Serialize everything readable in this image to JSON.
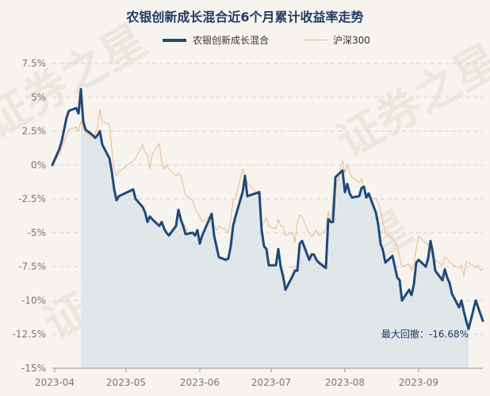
{
  "chart_data": {
    "type": "line",
    "title": "农银创新成长混合近6个月累计收益率走势",
    "xlabel": "",
    "ylabel": "",
    "ylim": [
      -15,
      7.5
    ],
    "yticks": [
      "7.5%",
      "5%",
      "2.5%",
      "0%",
      "-2.5%",
      "-5%",
      "-7.5%",
      "-10%",
      "-12.5%",
      "-15%"
    ],
    "xticks": [
      "2023-04",
      "2023-05",
      "2023-06",
      "2023-07",
      "2023-08",
      "2023-09"
    ],
    "grid": true,
    "legend_position": "top",
    "annotation": "最大回撤：-16.68%",
    "watermark": "证券之星",
    "series": [
      {
        "name": "农银创新成长混合",
        "color": "#1f4a7a",
        "x": [
          "2023-03-31",
          "2023-04-03",
          "2023-04-04",
          "2023-04-06",
          "2023-04-07",
          "2023-04-10",
          "2023-04-11",
          "2023-04-12",
          "2023-04-13",
          "2023-04-14",
          "2023-04-17",
          "2023-04-18",
          "2023-04-19",
          "2023-04-20",
          "2023-04-21",
          "2023-04-24",
          "2023-04-25",
          "2023-04-26",
          "2023-04-27",
          "2023-04-28",
          "2023-05-04",
          "2023-05-05",
          "2023-05-08",
          "2023-05-09",
          "2023-05-10",
          "2023-05-11",
          "2023-05-12",
          "2023-05-15",
          "2023-05-16",
          "2023-05-17",
          "2023-05-18",
          "2023-05-19",
          "2023-05-22",
          "2023-05-23",
          "2023-05-24",
          "2023-05-25",
          "2023-05-26",
          "2023-05-29",
          "2023-05-30",
          "2023-05-31",
          "2023-06-01",
          "2023-06-02",
          "2023-06-05",
          "2023-06-06",
          "2023-06-07",
          "2023-06-08",
          "2023-06-09",
          "2023-06-12",
          "2023-06-13",
          "2023-06-14",
          "2023-06-15",
          "2023-06-16",
          "2023-06-19",
          "2023-06-20",
          "2023-06-21",
          "2023-06-26",
          "2023-06-27",
          "2023-06-28",
          "2023-06-29",
          "2023-06-30",
          "2023-07-03",
          "2023-07-04",
          "2023-07-05",
          "2023-07-06",
          "2023-07-07",
          "2023-07-10",
          "2023-07-11",
          "2023-07-12",
          "2023-07-13",
          "2023-07-14",
          "2023-07-17",
          "2023-07-18",
          "2023-07-19",
          "2023-07-20",
          "2023-07-21",
          "2023-07-24",
          "2023-07-25",
          "2023-07-26",
          "2023-07-27",
          "2023-07-28",
          "2023-07-31",
          "2023-08-01",
          "2023-08-02",
          "2023-08-03",
          "2023-08-04",
          "2023-08-07",
          "2023-08-08",
          "2023-08-09",
          "2023-08-10",
          "2023-08-11",
          "2023-08-14",
          "2023-08-15",
          "2023-08-16",
          "2023-08-17",
          "2023-08-18",
          "2023-08-21",
          "2023-08-22",
          "2023-08-23",
          "2023-08-24",
          "2023-08-25",
          "2023-08-28",
          "2023-08-29",
          "2023-08-30",
          "2023-08-31",
          "2023-09-01",
          "2023-09-04",
          "2023-09-05",
          "2023-09-06",
          "2023-09-07",
          "2023-09-08",
          "2023-09-11",
          "2023-09-12",
          "2023-09-13",
          "2023-09-14",
          "2023-09-15",
          "2023-09-18",
          "2023-09-19",
          "2023-09-20",
          "2023-09-21",
          "2023-09-22",
          "2023-09-25",
          "2023-09-26",
          "2023-09-27",
          "2023-09-28"
        ],
        "values": [
          0,
          1.2,
          1.8,
          3.5,
          4.0,
          4.2,
          3.8,
          5.6,
          3.2,
          2.6,
          2.2,
          2.0,
          2.2,
          2.5,
          1.5,
          0.5,
          -0.5,
          -1.8,
          -2.6,
          -2.3,
          -1.8,
          -2.5,
          -3.1,
          -3.5,
          -4.2,
          -3.8,
          -4.0,
          -4.5,
          -4.2,
          -4.7,
          -5.0,
          -5.2,
          -4.5,
          -3.3,
          -4.0,
          -4.5,
          -5.1,
          -5.0,
          -5.2,
          -4.8,
          -5.8,
          -5.2,
          -4.0,
          -3.6,
          -5.2,
          -6.0,
          -6.8,
          -7.0,
          -6.9,
          -6.0,
          -4.5,
          -3.8,
          -2.0,
          -0.8,
          -2.3,
          -2.0,
          -4.8,
          -6.0,
          -6.2,
          -7.4,
          -7.4,
          -6.2,
          -7.5,
          -8.2,
          -9.2,
          -8.2,
          -7.8,
          -7.8,
          -5.8,
          -5.6,
          -7.0,
          -6.6,
          -6.6,
          -7.0,
          -7.2,
          -7.6,
          -4.0,
          -4.2,
          -4.2,
          -0.9,
          -0.4,
          -2.0,
          -1.4,
          -2.1,
          -2.4,
          -2.3,
          -1.7,
          -1.6,
          -2.4,
          -2.1,
          -3.5,
          -4.4,
          -5.8,
          -6.3,
          -7.2,
          -6.7,
          -7.5,
          -8.3,
          -8.5,
          -10.0,
          -9.2,
          -9.6,
          -8.8,
          -7.2,
          -7.0,
          -7.5,
          -6.9,
          -5.6,
          -6.5,
          -7.8,
          -8.5,
          -7.7,
          -8.3,
          -8.7,
          -9.5,
          -10.5,
          -10.0,
          -10.8,
          -11.5,
          -12.1,
          -10.0,
          -10.5,
          -11.0,
          -11.5
        ],
        "line_width": 3
      },
      {
        "name": "沪深300",
        "color": "#e9b98a",
        "x": [
          "2023-03-31",
          "2023-04-03",
          "2023-04-04",
          "2023-04-06",
          "2023-04-07",
          "2023-04-10",
          "2023-04-11",
          "2023-04-12",
          "2023-04-13",
          "2023-04-14",
          "2023-04-17",
          "2023-04-18",
          "2023-04-19",
          "2023-04-20",
          "2023-04-21",
          "2023-04-24",
          "2023-04-25",
          "2023-04-26",
          "2023-04-27",
          "2023-04-28",
          "2023-05-04",
          "2023-05-05",
          "2023-05-08",
          "2023-05-09",
          "2023-05-10",
          "2023-05-11",
          "2023-05-12",
          "2023-05-15",
          "2023-05-16",
          "2023-05-17",
          "2023-05-18",
          "2023-05-19",
          "2023-05-22",
          "2023-05-23",
          "2023-05-24",
          "2023-05-25",
          "2023-05-26",
          "2023-05-29",
          "2023-05-30",
          "2023-05-31",
          "2023-06-01",
          "2023-06-02",
          "2023-06-05",
          "2023-06-06",
          "2023-06-07",
          "2023-06-08",
          "2023-06-09",
          "2023-06-12",
          "2023-06-13",
          "2023-06-14",
          "2023-06-15",
          "2023-06-16",
          "2023-06-19",
          "2023-06-20",
          "2023-06-21",
          "2023-06-26",
          "2023-06-27",
          "2023-06-28",
          "2023-06-29",
          "2023-06-30",
          "2023-07-03",
          "2023-07-04",
          "2023-07-05",
          "2023-07-06",
          "2023-07-07",
          "2023-07-10",
          "2023-07-11",
          "2023-07-12",
          "2023-07-13",
          "2023-07-14",
          "2023-07-17",
          "2023-07-18",
          "2023-07-19",
          "2023-07-20",
          "2023-07-21",
          "2023-07-24",
          "2023-07-25",
          "2023-07-26",
          "2023-07-27",
          "2023-07-28",
          "2023-07-31",
          "2023-08-01",
          "2023-08-02",
          "2023-08-03",
          "2023-08-04",
          "2023-08-07",
          "2023-08-08",
          "2023-08-09",
          "2023-08-10",
          "2023-08-11",
          "2023-08-14",
          "2023-08-15",
          "2023-08-16",
          "2023-08-17",
          "2023-08-18",
          "2023-08-21",
          "2023-08-22",
          "2023-08-23",
          "2023-08-24",
          "2023-08-25",
          "2023-08-28",
          "2023-08-29",
          "2023-08-30",
          "2023-08-31",
          "2023-09-01",
          "2023-09-04",
          "2023-09-05",
          "2023-09-06",
          "2023-09-07",
          "2023-09-08",
          "2023-09-11",
          "2023-09-12",
          "2023-09-13",
          "2023-09-14",
          "2023-09-15",
          "2023-09-18",
          "2023-09-19",
          "2023-09-20",
          "2023-09-21",
          "2023-09-22",
          "2023-09-25",
          "2023-09-26",
          "2023-09-27",
          "2023-09-28"
        ],
        "values": [
          0,
          0.8,
          1.3,
          2.2,
          2.6,
          2.8,
          2.5,
          3.2,
          2.8,
          2.4,
          2.0,
          2.3,
          2.8,
          4.1,
          3.2,
          3.0,
          1.2,
          -0.3,
          -0.8,
          -0.5,
          0.3,
          0.5,
          1.5,
          0.9,
          0.8,
          -0.3,
          0.8,
          1.6,
          0.2,
          -0.3,
          0.0,
          -0.3,
          -0.8,
          -0.6,
          -0.8,
          -1.5,
          -2.2,
          -2.6,
          -3.2,
          -3.5,
          -3.8,
          -4.2,
          -3.8,
          -3.9,
          -4.5,
          -4.8,
          -4.5,
          -4.8,
          -5.0,
          -4.0,
          -2.6,
          -2.5,
          -0.3,
          -0.8,
          -1.3,
          -2.3,
          -4.6,
          -4.2,
          -3.9,
          -4.5,
          -4.7,
          -4.0,
          -4.5,
          -4.5,
          -5.2,
          -5.0,
          -5.7,
          -4.2,
          -3.7,
          -3.8,
          -5.1,
          -5.3,
          -5.1,
          -4.8,
          -5.2,
          -4.8,
          -3.4,
          -4.2,
          -2.7,
          -1.8,
          0.3,
          -0.6,
          0.0,
          -0.5,
          -0.9,
          -1.3,
          -1.0,
          -1.8,
          -2.1,
          -2.4,
          -2.5,
          -2.8,
          -3.4,
          -4.2,
          -5.0,
          -5.4,
          -5.7,
          -6.0,
          -6.8,
          -7.5,
          -7.3,
          -7.8,
          -7.3,
          -6.2,
          -5.2,
          -5.8,
          -5.8,
          -6.2,
          -6.9,
          -7.0,
          -7.4,
          -6.8,
          -6.9,
          -7.2,
          -7.3,
          -7.6,
          -7.4,
          -8.2,
          -7.1,
          -7.2,
          -7.6,
          -7.4,
          -7.8,
          -7.6
        ],
        "line_width": 1
      }
    ],
    "drawdown": {
      "start": "2023-04-12",
      "end": "2023-09-22",
      "fill_color": "#dde3e8"
    }
  }
}
